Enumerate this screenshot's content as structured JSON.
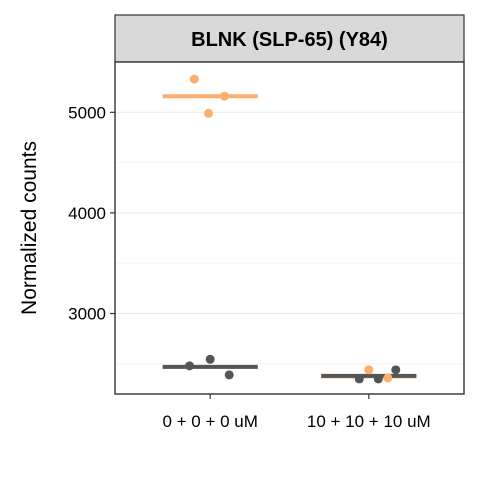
{
  "chart_data": {
    "type": "scatter",
    "facet_title": "BLNK (SLP-65) (Y84)",
    "ylabel": "Normalized counts",
    "xlabel": "",
    "categories": [
      "0 + 0 + 0 uM",
      "10 + 10 + 10 uM"
    ],
    "ylim": [
      2200,
      5500
    ],
    "yticks": [
      3000,
      4000,
      5000
    ],
    "ytick_labels": [
      "3000",
      "4000",
      "5000"
    ],
    "grid": true,
    "legend": "none",
    "series": [
      {
        "color": "#FDAE6B",
        "points": [
          {
            "category": "0 + 0 + 0 uM",
            "offset": -0.1,
            "y": 5330
          },
          {
            "category": "0 + 0 + 0 uM",
            "offset": -0.01,
            "y": 4990
          },
          {
            "category": "0 + 0 + 0 uM",
            "offset": 0.09,
            "y": 5160
          },
          {
            "category": "10 + 10 + 10 uM",
            "offset": 0.0,
            "y": 2440
          },
          {
            "category": "10 + 10 + 10 uM",
            "offset": 0.12,
            "y": 2360
          }
        ],
        "means": [
          {
            "category": "0 + 0 + 0 uM",
            "y": 5160
          },
          {
            "category": "10 + 10 + 10 uM",
            "y": 2375
          }
        ]
      },
      {
        "color": "#555555",
        "points": [
          {
            "category": "0 + 0 + 0 uM",
            "offset": -0.13,
            "y": 2480
          },
          {
            "category": "0 + 0 + 0 uM",
            "offset": 0.0,
            "y": 2545
          },
          {
            "category": "0 + 0 + 0 uM",
            "offset": 0.12,
            "y": 2390
          },
          {
            "category": "10 + 10 + 10 uM",
            "offset": -0.06,
            "y": 2350
          },
          {
            "category": "10 + 10 + 10 uM",
            "offset": 0.06,
            "y": 2350
          },
          {
            "category": "10 + 10 + 10 uM",
            "offset": 0.17,
            "y": 2440
          }
        ],
        "means": [
          {
            "category": "0 + 0 + 0 uM",
            "y": 2470
          },
          {
            "category": "10 + 10 + 10 uM",
            "y": 2380
          }
        ]
      }
    ]
  }
}
